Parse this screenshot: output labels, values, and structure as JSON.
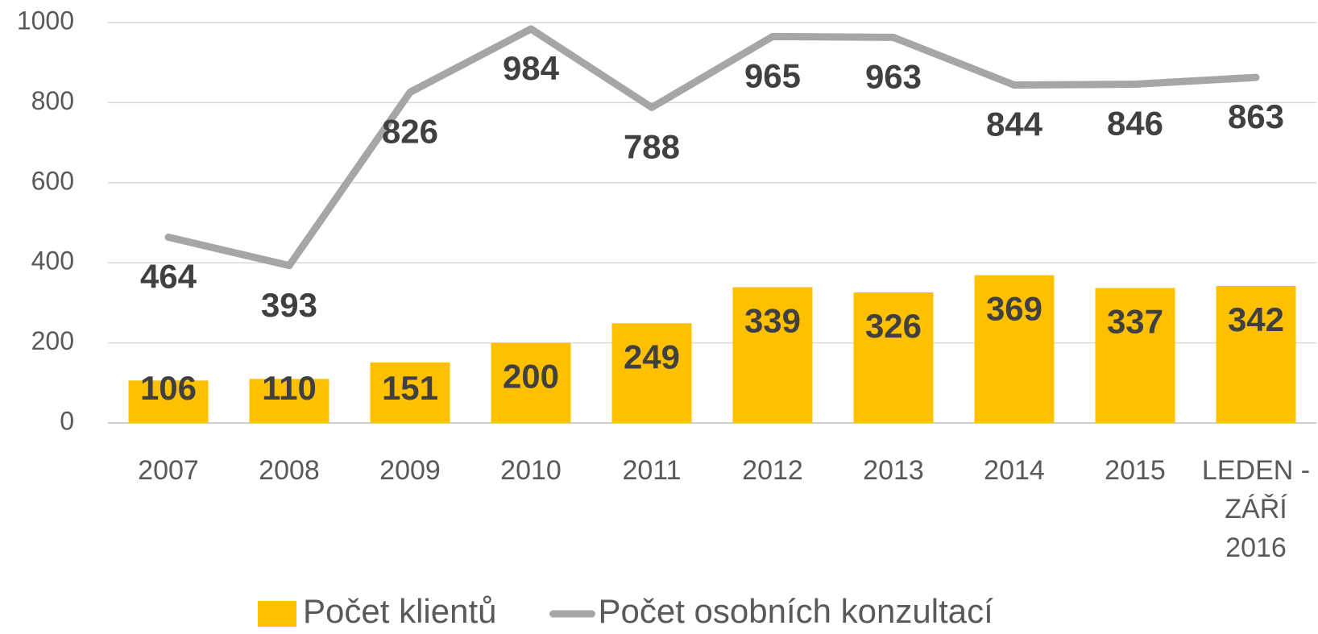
{
  "chart_data": {
    "type": "bar_line",
    "categories": [
      "2007",
      "2008",
      "2009",
      "2010",
      "2011",
      "2012",
      "2013",
      "2014",
      "2015",
      "LEDEN - ZÁŘÍ 2016"
    ],
    "series": [
      {
        "name": "Počet klientů",
        "type": "bar",
        "color": "#ffc000",
        "values": [
          106,
          110,
          151,
          200,
          249,
          339,
          326,
          369,
          337,
          342
        ]
      },
      {
        "name": "Počet osobních konzultací",
        "type": "line",
        "color": "#a6a6a6",
        "values": [
          464,
          393,
          826,
          984,
          788,
          965,
          963,
          844,
          846,
          863
        ]
      }
    ],
    "ylim": [
      0,
      1000
    ],
    "yticks": [
      0,
      200,
      400,
      600,
      800,
      1000
    ],
    "grid": true,
    "legend": "bottom"
  }
}
